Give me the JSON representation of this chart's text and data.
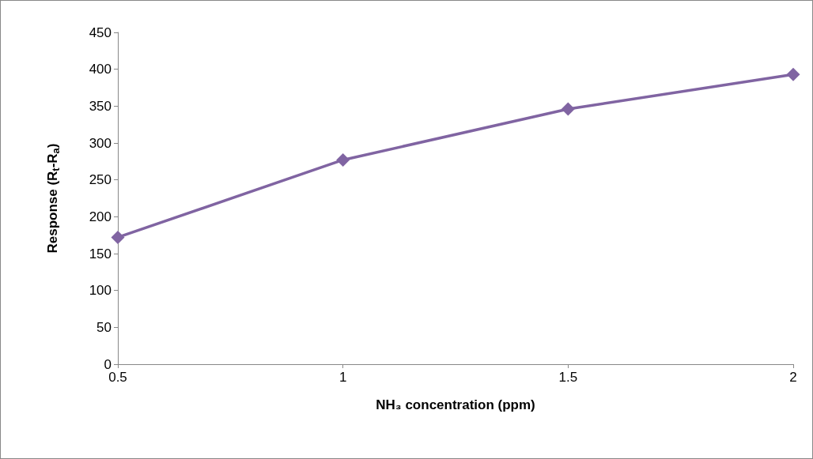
{
  "chart_data": {
    "type": "line",
    "xlabel": "NH₃ concentration (ppm)",
    "ylabel": "Response (R$_{t}$-R$_{a}$)",
    "x": [
      0.5,
      1,
      1.5,
      2
    ],
    "series": [
      {
        "color": "#8064a2",
        "values": [
          172,
          277,
          346,
          393
        ]
      }
    ],
    "xlim": [
      0.5,
      2
    ],
    "xticks": [
      0.5,
      1,
      1.5,
      2
    ],
    "ylim": [
      0,
      450
    ],
    "yticks": [
      0,
      50,
      100,
      150,
      200,
      250,
      300,
      350,
      400,
      450
    ],
    "grid": false,
    "marker": "diamond",
    "line_style": "solid"
  }
}
